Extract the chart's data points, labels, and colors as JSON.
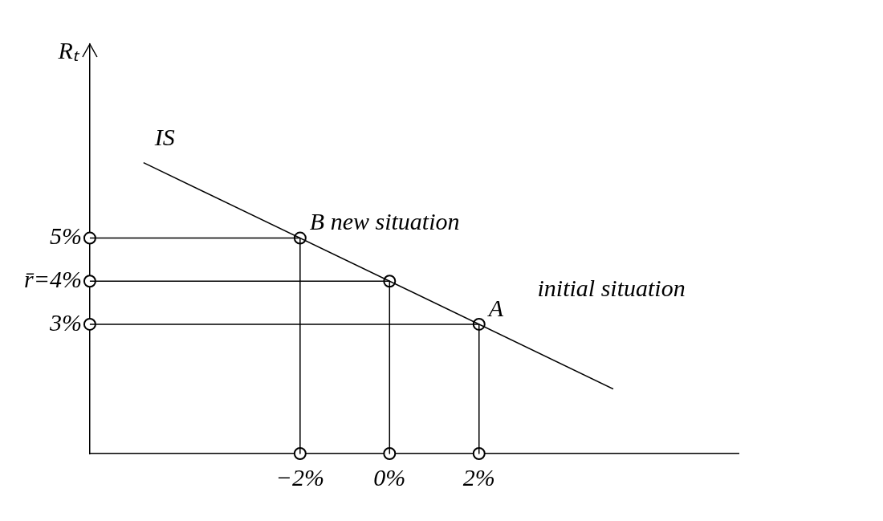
{
  "chart_data": {
    "type": "line",
    "ylabel": "Rₜ",
    "xlim": [
      -6.7,
      7.8
    ],
    "ylim": [
      0,
      9.5
    ],
    "xticks": [
      {
        "value": -2,
        "label": "−2%"
      },
      {
        "value": 0,
        "label": "0%"
      },
      {
        "value": 2,
        "label": "2%"
      }
    ],
    "yticks": [
      {
        "value": 3,
        "label": "3%"
      },
      {
        "value": 4,
        "label": "r̄=4%"
      },
      {
        "value": 5,
        "label": "5%"
      }
    ],
    "grid": false,
    "legend": false,
    "line_style": "solid",
    "series": [
      {
        "name": "IS",
        "color": "#000000",
        "x": [
          -5.5,
          5
        ],
        "values": [
          6.75,
          1.5
        ]
      },
      {
        "color": "#000000",
        "x": [
          -6.7,
          -2,
          -2
        ],
        "values": [
          5,
          5,
          0
        ]
      },
      {
        "color": "#000000",
        "x": [
          -6.7,
          0,
          0
        ],
        "values": [
          4,
          4,
          0
        ]
      },
      {
        "color": "#000000",
        "x": [
          -6.7,
          2,
          2
        ],
        "values": [
          3,
          3,
          0
        ]
      },
      {
        "type": "scatter",
        "color": "#000000",
        "marker": "circle",
        "x": [
          -6.7,
          -6.7,
          -6.7,
          -2,
          0,
          2,
          -2,
          0,
          2
        ],
        "values": [
          5,
          4,
          3,
          5,
          4,
          3,
          0,
          0,
          0
        ]
      }
    ],
    "annotations": [
      {
        "text": "B new situation",
        "x": -2,
        "y": 5
      },
      {
        "text": "A",
        "x": 2,
        "y": 3
      },
      "initial situation"
    ]
  }
}
